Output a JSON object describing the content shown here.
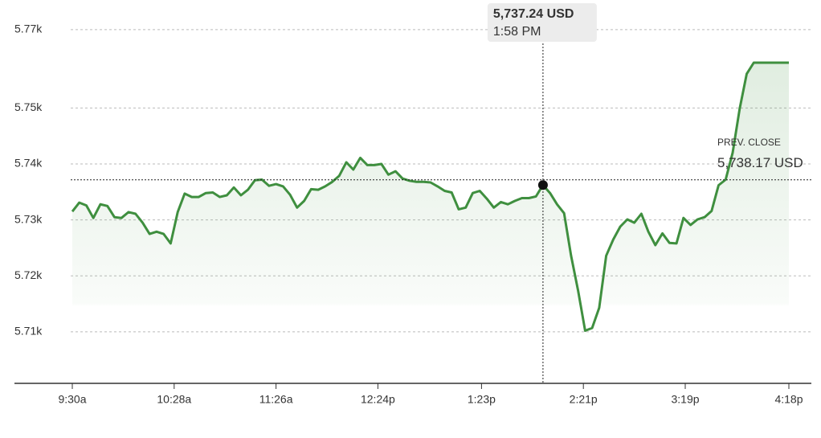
{
  "chart_data": {
    "type": "line",
    "color": "#3f8f3f",
    "x": [
      0,
      4,
      8,
      12,
      16,
      20,
      24,
      28,
      32,
      36,
      40,
      44,
      48,
      52,
      56,
      60,
      64,
      68,
      72,
      76,
      80,
      84,
      88,
      92,
      96,
      100,
      104,
      108,
      112,
      116,
      120,
      124,
      128,
      132,
      136,
      140,
      144,
      148,
      152,
      156,
      160,
      164,
      168,
      172,
      176,
      180,
      184,
      188,
      192,
      196,
      200,
      204,
      208,
      212,
      216,
      220,
      224,
      228,
      232,
      236,
      240,
      244,
      248,
      252,
      256,
      260,
      264,
      268,
      272,
      276,
      280,
      284,
      288,
      292,
      296,
      300,
      304,
      308,
      312,
      316,
      320,
      324,
      328,
      332,
      336,
      340,
      344,
      348,
      352,
      356,
      360,
      364,
      368,
      372,
      376,
      380,
      384,
      388,
      392,
      396,
      400,
      404,
      408
    ],
    "values": [
      5732.5,
      5734.1,
      5733.6,
      5731.35,
      5733.8,
      5733.5,
      5731.5,
      5731.35,
      5732.4,
      5732.1,
      5730.5,
      5728.5,
      5728.9,
      5728.5,
      5726.8,
      5732.4,
      5735.7,
      5735.1,
      5735.1,
      5735.8,
      5735.9,
      5735.1,
      5735.4,
      5736.8,
      5735.4,
      5736.4,
      5738.1,
      5738.2,
      5737.1,
      5737.4,
      5737.0,
      5735.5,
      5733.2,
      5734.4,
      5736.5,
      5736.4,
      5737.0,
      5737.8,
      5738.9,
      5741.3,
      5740.0,
      5742.1,
      5740.8,
      5740.8,
      5741.0,
      5739.1,
      5739.7,
      5738.4,
      5738.0,
      5737.8,
      5737.8,
      5737.7,
      5737.0,
      5736.2,
      5735.9,
      5732.9,
      5733.2,
      5735.8,
      5736.2,
      5734.8,
      5733.2,
      5734.2,
      5733.8,
      5734.4,
      5734.9,
      5734.9,
      5735.2,
      5737.24,
      5735.8,
      5733.8,
      5732.2,
      5724.6,
      5718.4,
      5711.2,
      5711.7,
      5715.3,
      5724.6,
      5727.5,
      5729.8,
      5731.1,
      5730.5,
      5732.1,
      5728.9,
      5726.5,
      5728.6,
      5726.9,
      5726.8,
      5731.35,
      5730.1,
      5731.1,
      5731.5,
      5732.6,
      5737.2,
      5738.2,
      5743.0,
      5750.9,
      5757.1,
      5759.1,
      5759.1,
      5759.1,
      5759.1,
      5759.1,
      5759.1
    ],
    "xlim": [
      0,
      408
    ],
    "xticks": [
      {
        "value": 0,
        "label": "9:30a"
      },
      {
        "value": 58,
        "label": "10:28a"
      },
      {
        "value": 116,
        "label": "11:26a"
      },
      {
        "value": 174,
        "label": "12:24p"
      },
      {
        "value": 233,
        "label": "1:23p"
      },
      {
        "value": 291,
        "label": "2:21p"
      },
      {
        "value": 349,
        "label": "3:19p"
      },
      {
        "value": 408,
        "label": "4:18p"
      }
    ],
    "ylim": [
      5701.8,
      5770.3
    ],
    "yticks": [
      {
        "value": 5765,
        "label": "5.77k"
      },
      {
        "value": 5751,
        "label": "5.75k"
      },
      {
        "value": 5741,
        "label": "5.74k"
      },
      {
        "value": 5731,
        "label": "5.73k"
      },
      {
        "value": 5721,
        "label": "5.72k"
      },
      {
        "value": 5711,
        "label": "5.71k"
      }
    ],
    "grid": true,
    "prev_close": {
      "label": "PREV. CLOSE",
      "value": 5738.17,
      "value_label": "5,738.17 USD"
    },
    "tooltip": {
      "x": 268,
      "value": 5737.24,
      "value_label": "5,737.24 USD",
      "time": "1:58 PM"
    }
  }
}
